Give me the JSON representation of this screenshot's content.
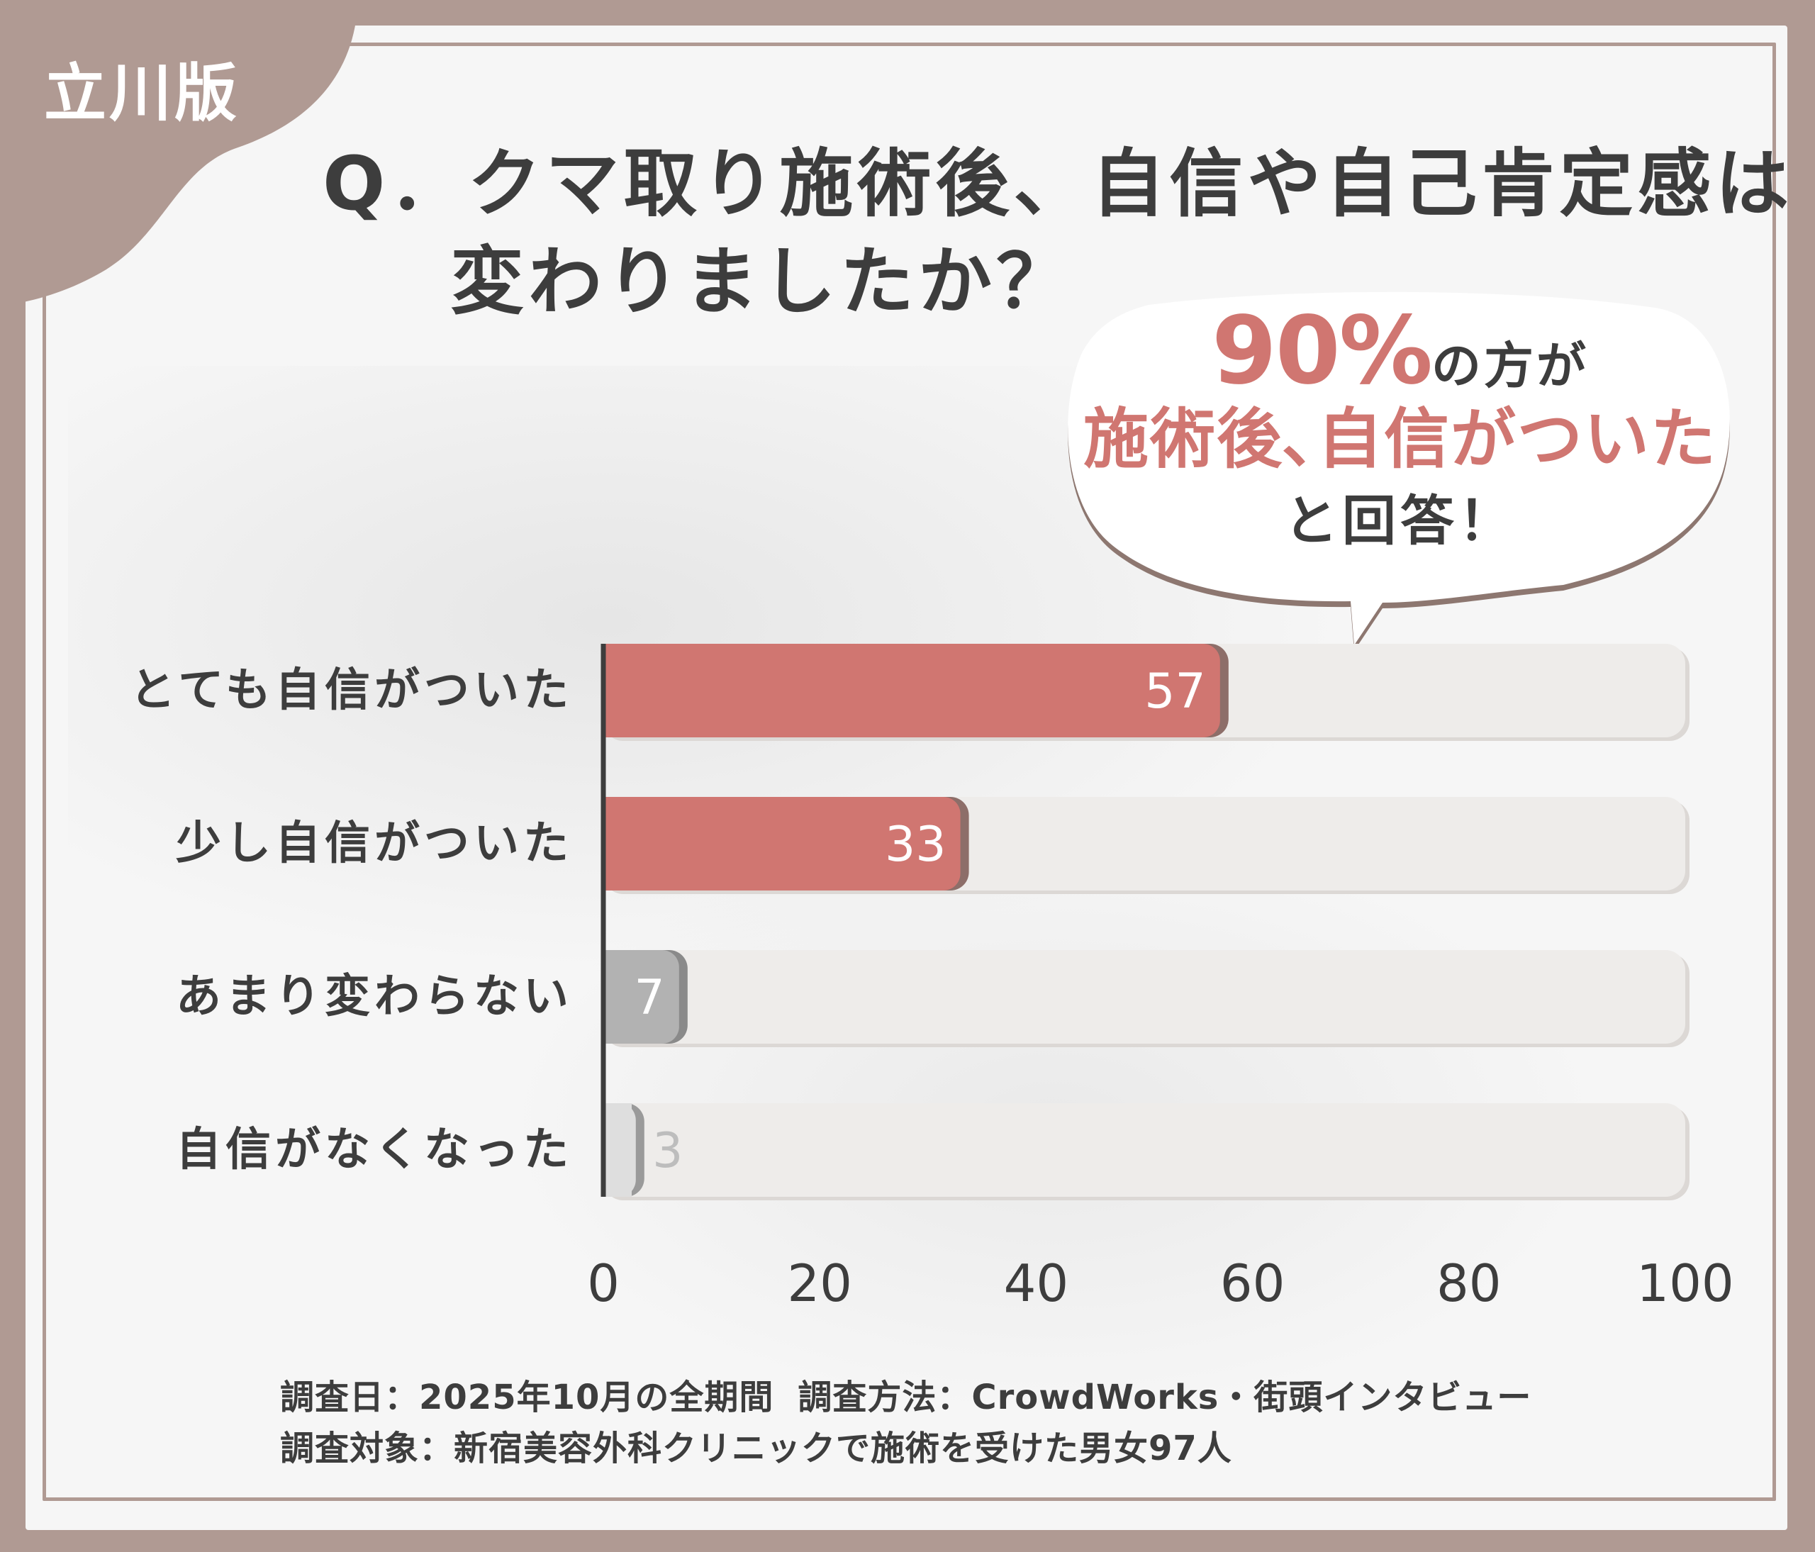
{
  "badge": {
    "label": "立川版"
  },
  "title": {
    "line1": "Q．クマ取り施術後、自信や自己肯定感は",
    "line2": "変わりましたか？"
  },
  "callout": {
    "percent": "90%",
    "line1_rest": "の方が",
    "line2": "施術後､自信がついた",
    "line3": "と回答！"
  },
  "colors": {
    "frame": "#b09a93",
    "bar_highlight": "#d07671",
    "bar_muted": "#b2b2b2",
    "bar_faint": "#dedede",
    "track": "#eeecea",
    "text": "#3d3d3d"
  },
  "chart_data": {
    "type": "bar",
    "orientation": "horizontal",
    "categories": [
      "とても自信がついた",
      "少し自信がついた",
      "あまり変わらない",
      "自信がなくなった"
    ],
    "values": [
      57,
      33,
      7,
      3
    ],
    "value_labels": [
      "57",
      "33",
      "7",
      "3"
    ],
    "xlim": [
      0,
      100
    ],
    "xticks": [
      "0",
      "20",
      "40",
      "60",
      "80",
      "100"
    ],
    "grid": false,
    "legend": "none"
  },
  "footer": {
    "date_label": "調査日：2025年10月の全期間",
    "method_label": "調査方法：CrowdWorks・街頭インタビュー",
    "target_label": "調査対象：新宿美容外科クリニックで施術を受けた男女97人"
  }
}
